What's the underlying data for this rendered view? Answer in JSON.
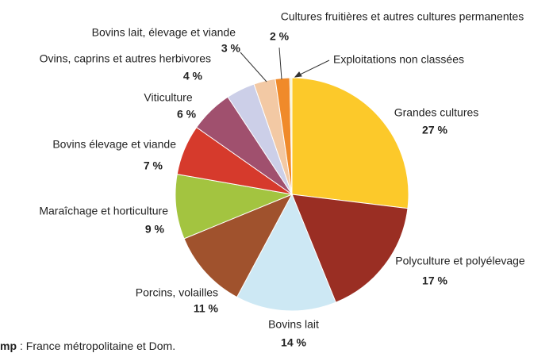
{
  "chart_data": {
    "type": "pie",
    "categories": [
      "Grandes cultures",
      "Polyculture et polyélevage",
      "Bovins lait",
      "Porcins, volailles",
      "Maraîchage et horticulture",
      "Bovins élevage et viande",
      "Viticulture",
      "Ovins, caprins et autres herbivores",
      "Bovins lait, élevage et viande",
      "Cultures fruitières et autres cultures permanentes",
      "Exploitations non classées"
    ],
    "values": [
      27,
      17,
      14,
      11,
      9,
      7,
      6,
      4,
      3,
      2,
      0.3
    ],
    "value_labels": [
      "27 %",
      "17 %",
      "14 %",
      "11 %",
      "9 %",
      "7 %",
      "6 %",
      "4 %",
      "3 %",
      "2 %",
      null
    ],
    "colors": [
      "#fcc92a",
      "#9a2e23",
      "#cde8f4",
      "#a0522d",
      "#a3c440",
      "#d63a2c",
      "#a0506e",
      "#cccfe8",
      "#f3c9a4",
      "#f08a2a",
      "#f5f0c0"
    ],
    "note_label": "mp",
    "note_text": ": France métropolitaine et Dom."
  }
}
